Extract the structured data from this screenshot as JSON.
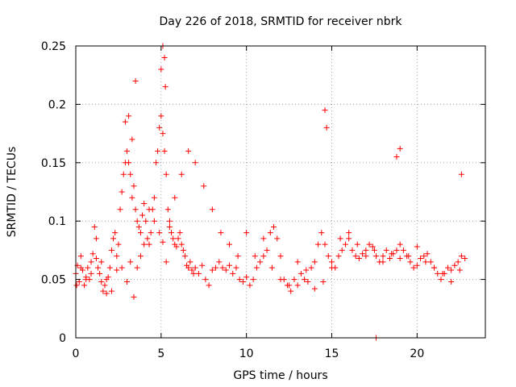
{
  "chart_data": {
    "type": "scatter",
    "title": "Day 226 of 2018, SRMTID for receiver nbrk",
    "xlabel": "GPS time / hours",
    "ylabel": "SRMTID / TECUs",
    "xlim": [
      0,
      24
    ],
    "ylim": [
      0,
      0.25
    ],
    "xticks": [
      0,
      5,
      10,
      15,
      20
    ],
    "xtick_labels": [
      "0",
      "5",
      "10",
      "15",
      "20"
    ],
    "yticks": [
      0,
      0.05,
      0.1,
      0.15,
      0.2,
      0.25
    ],
    "ytick_labels": [
      "0",
      "0.05",
      "0.1",
      "0.15",
      "0.2",
      "0.25"
    ],
    "grid": true,
    "marker": "plus",
    "color": "#ff0000",
    "series": [
      {
        "name": "SRMTID",
        "x": [
          0.0,
          0.1,
          0.2,
          0.3,
          0.4,
          0.5,
          0.6,
          0.7,
          0.8,
          0.9,
          1.0,
          1.1,
          1.2,
          1.3,
          1.4,
          1.5,
          1.6,
          1.7,
          1.8,
          1.9,
          2.0,
          2.1,
          2.2,
          2.3,
          2.4,
          2.5,
          2.6,
          2.7,
          2.8,
          2.9,
          3.0,
          3.1,
          3.2,
          3.3,
          3.4,
          3.5,
          3.6,
          3.7,
          3.8,
          3.9,
          4.0,
          4.1,
          4.2,
          4.3,
          4.4,
          4.5,
          4.6,
          4.7,
          4.8,
          4.9,
          5.0,
          5.1,
          5.2,
          5.3,
          5.4,
          5.5,
          5.6,
          5.7,
          5.8,
          5.9,
          6.0,
          6.1,
          6.2,
          6.3,
          6.4,
          6.5,
          6.6,
          6.7,
          6.8,
          6.9,
          7.0,
          7.2,
          7.4,
          7.6,
          7.8,
          8.0,
          8.2,
          8.4,
          8.6,
          8.8,
          9.0,
          9.2,
          9.4,
          9.6,
          9.8,
          10.0,
          10.2,
          10.4,
          10.6,
          10.8,
          11.0,
          11.2,
          11.4,
          11.6,
          11.8,
          12.0,
          12.2,
          12.4,
          12.6,
          12.8,
          13.0,
          13.2,
          13.4,
          13.6,
          13.8,
          14.0,
          14.2,
          14.4,
          14.6,
          14.8,
          15.0,
          15.2,
          15.4,
          15.6,
          15.8,
          16.0,
          16.2,
          16.4,
          16.6,
          16.8,
          17.0,
          17.2,
          17.4,
          17.6,
          17.8,
          18.0,
          18.2,
          18.4,
          18.6,
          18.8,
          19.0,
          19.2,
          19.4,
          19.6,
          19.8,
          20.0,
          20.2,
          20.4,
          20.6,
          20.8,
          21.0,
          21.2,
          21.4,
          21.6,
          21.8,
          22.0,
          22.2,
          22.4,
          22.6,
          22.8,
          0.05,
          0.3,
          0.6,
          0.9,
          1.2,
          1.5,
          1.8,
          2.1,
          2.4,
          2.7,
          3.0,
          3.2,
          3.4,
          3.6,
          3.8,
          4.0,
          4.3,
          4.6,
          4.9,
          5.1,
          5.3,
          5.5,
          5.8,
          6.2,
          6.6,
          7.0,
          7.5,
          8.0,
          8.5,
          9.0,
          9.5,
          10.0,
          10.5,
          11.0,
          11.5,
          12.0,
          12.5,
          13.0,
          13.5,
          14.0,
          14.5,
          15.0,
          15.5,
          16.0,
          16.5,
          17.0,
          17.5,
          18.0,
          18.5,
          19.0,
          19.5,
          20.0,
          20.5,
          21.0,
          21.5,
          22.0,
          22.5,
          2.9,
          3.1,
          3.3,
          3.5,
          5.0,
          5.1,
          5.2,
          5.25,
          14.6,
          14.7,
          18.8,
          19.0,
          22.6,
          17.6
        ],
        "y": [
          0.055,
          0.062,
          0.048,
          0.07,
          0.058,
          0.045,
          0.052,
          0.06,
          0.05,
          0.065,
          0.072,
          0.095,
          0.085,
          0.06,
          0.055,
          0.048,
          0.04,
          0.045,
          0.038,
          0.052,
          0.06,
          0.075,
          0.085,
          0.09,
          0.07,
          0.08,
          0.11,
          0.125,
          0.14,
          0.15,
          0.16,
          0.15,
          0.14,
          0.12,
          0.13,
          0.11,
          0.1,
          0.095,
          0.09,
          0.105,
          0.115,
          0.1,
          0.085,
          0.08,
          0.09,
          0.11,
          0.12,
          0.15,
          0.16,
          0.18,
          0.19,
          0.175,
          0.16,
          0.14,
          0.11,
          0.095,
          0.09,
          0.085,
          0.08,
          0.078,
          0.085,
          0.09,
          0.08,
          0.075,
          0.07,
          0.062,
          0.06,
          0.065,
          0.058,
          0.055,
          0.06,
          0.055,
          0.062,
          0.05,
          0.045,
          0.058,
          0.06,
          0.065,
          0.06,
          0.058,
          0.062,
          0.055,
          0.06,
          0.05,
          0.048,
          0.052,
          0.045,
          0.05,
          0.06,
          0.065,
          0.07,
          0.075,
          0.09,
          0.095,
          0.085,
          0.07,
          0.05,
          0.045,
          0.04,
          0.05,
          0.045,
          0.055,
          0.05,
          0.048,
          0.06,
          0.065,
          0.08,
          0.09,
          0.08,
          0.07,
          0.065,
          0.06,
          0.07,
          0.075,
          0.08,
          0.085,
          0.075,
          0.07,
          0.068,
          0.072,
          0.075,
          0.08,
          0.078,
          0.07,
          0.065,
          0.07,
          0.075,
          0.068,
          0.072,
          0.075,
          0.08,
          0.075,
          0.07,
          0.065,
          0.06,
          0.062,
          0.068,
          0.07,
          0.072,
          0.065,
          0.06,
          0.055,
          0.05,
          0.055,
          0.06,
          0.058,
          0.062,
          0.065,
          0.07,
          0.068,
          0.045,
          0.06,
          0.05,
          0.055,
          0.068,
          0.065,
          0.05,
          0.04,
          0.058,
          0.06,
          0.048,
          0.065,
          0.035,
          0.06,
          0.07,
          0.08,
          0.11,
          0.1,
          0.09,
          0.082,
          0.065,
          0.1,
          0.12,
          0.14,
          0.16,
          0.15,
          0.13,
          0.11,
          0.09,
          0.08,
          0.07,
          0.09,
          0.07,
          0.085,
          0.06,
          0.05,
          0.045,
          0.065,
          0.058,
          0.042,
          0.048,
          0.06,
          0.085,
          0.09,
          0.08,
          0.07,
          0.075,
          0.065,
          0.072,
          0.068,
          0.07,
          0.078,
          0.065,
          0.06,
          0.055,
          0.048,
          0.058,
          0.185,
          0.19,
          0.17,
          0.22,
          0.23,
          0.25,
          0.24,
          0.215,
          0.195,
          0.18,
          0.155,
          0.162,
          0.14,
          0.0
        ]
      }
    ]
  }
}
